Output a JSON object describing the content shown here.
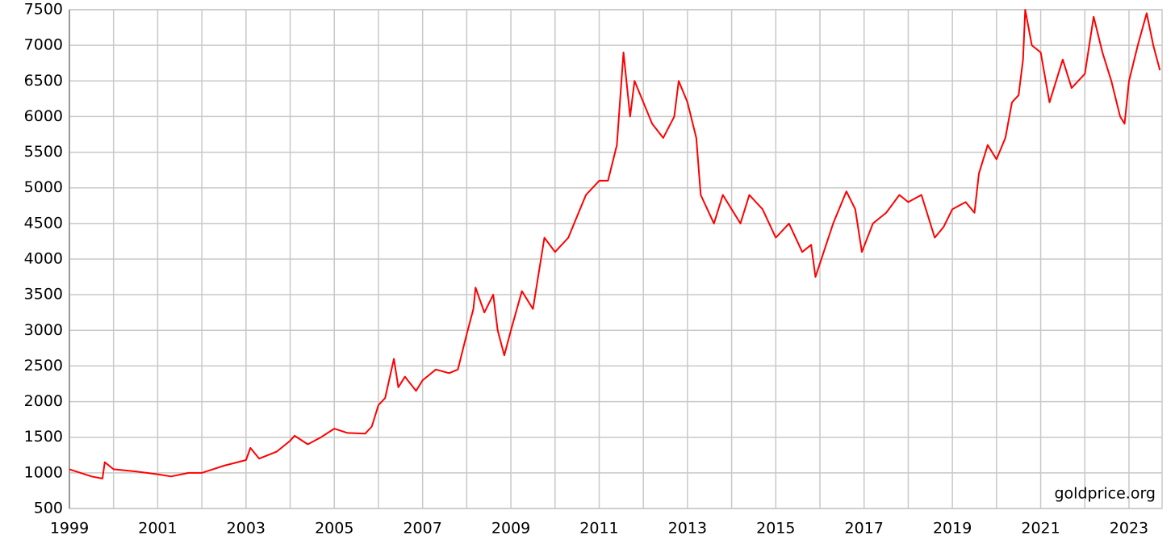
{
  "chart_data": {
    "type": "line",
    "annotation": "goldprice.org",
    "x": [
      1999.0,
      1999.5,
      1999.75,
      1999.8,
      2000.0,
      2000.5,
      2001.0,
      2001.3,
      2001.7,
      2002.0,
      2002.5,
      2003.0,
      2003.1,
      2003.3,
      2003.7,
      2004.0,
      2004.1,
      2004.4,
      2004.7,
      2005.0,
      2005.3,
      2005.7,
      2005.85,
      2006.0,
      2006.15,
      2006.35,
      2006.45,
      2006.6,
      2006.85,
      2007.0,
      2007.3,
      2007.6,
      2007.8,
      2008.0,
      2008.15,
      2008.2,
      2008.4,
      2008.6,
      2008.7,
      2008.85,
      2009.0,
      2009.25,
      2009.5,
      2009.76,
      2010.0,
      2010.3,
      2010.5,
      2010.7,
      2011.0,
      2011.2,
      2011.4,
      2011.55,
      2011.7,
      2011.8,
      2012.0,
      2012.2,
      2012.45,
      2012.7,
      2012.8,
      2013.0,
      2013.2,
      2013.3,
      2013.6,
      2013.8,
      2014.0,
      2014.2,
      2014.4,
      2014.7,
      2015.0,
      2015.3,
      2015.6,
      2015.8,
      2015.9,
      2016.3,
      2016.6,
      2016.8,
      2016.95,
      2017.2,
      2017.5,
      2017.8,
      2018.0,
      2018.3,
      2018.6,
      2018.8,
      2019.0,
      2019.3,
      2019.5,
      2019.6,
      2019.8,
      2020.0,
      2020.2,
      2020.35,
      2020.5,
      2020.6,
      2020.65,
      2020.8,
      2021.0,
      2021.2,
      2021.5,
      2021.7,
      2022.0,
      2022.2,
      2022.4,
      2022.6,
      2022.8,
      2022.9,
      2023.0,
      2023.2,
      2023.4,
      2023.55,
      2023.7
    ],
    "values": [
      1050,
      950,
      920,
      1150,
      1050,
      1020,
      980,
      950,
      1000,
      1000,
      1100,
      1180,
      1350,
      1200,
      1300,
      1450,
      1520,
      1400,
      1500,
      1620,
      1560,
      1550,
      1650,
      1950,
      2050,
      2600,
      2200,
      2350,
      2150,
      2300,
      2450,
      2400,
      2450,
      2950,
      3300,
      3600,
      3250,
      3500,
      3000,
      2650,
      3000,
      3550,
      3300,
      4300,
      4100,
      4300,
      4600,
      4900,
      5100,
      5100,
      5600,
      6900,
      6000,
      6500,
      6200,
      5900,
      5700,
      6000,
      6500,
      6200,
      5700,
      4900,
      4500,
      4900,
      4700,
      4500,
      4900,
      4700,
      4300,
      4500,
      4100,
      4200,
      3750,
      4500,
      4950,
      4700,
      4100,
      4500,
      4650,
      4900,
      4800,
      4900,
      4300,
      4450,
      4700,
      4800,
      4650,
      5200,
      5600,
      5400,
      5700,
      6200,
      6300,
      6800,
      7500,
      7000,
      6900,
      6200,
      6800,
      6400,
      6600,
      7400,
      6900,
      6500,
      6000,
      5900,
      6500,
      7000,
      7450,
      7000,
      6650
    ],
    "color": "#ff0000",
    "xlim": [
      1999,
      2023.75
    ],
    "xticks": [
      1999,
      2001,
      2003,
      2005,
      2007,
      2009,
      2011,
      2013,
      2015,
      2017,
      2019,
      2021,
      2023
    ],
    "x_grid": [
      2000,
      2002,
      2004,
      2006,
      2008,
      2010,
      2012,
      2014,
      2016,
      2018,
      2020,
      2022
    ],
    "ylim": [
      500,
      7500
    ],
    "yticks": [
      500,
      1000,
      1500,
      2000,
      2500,
      3000,
      3500,
      4000,
      4500,
      5000,
      5500,
      6000,
      6500,
      7000,
      7500
    ],
    "grid": true
  }
}
